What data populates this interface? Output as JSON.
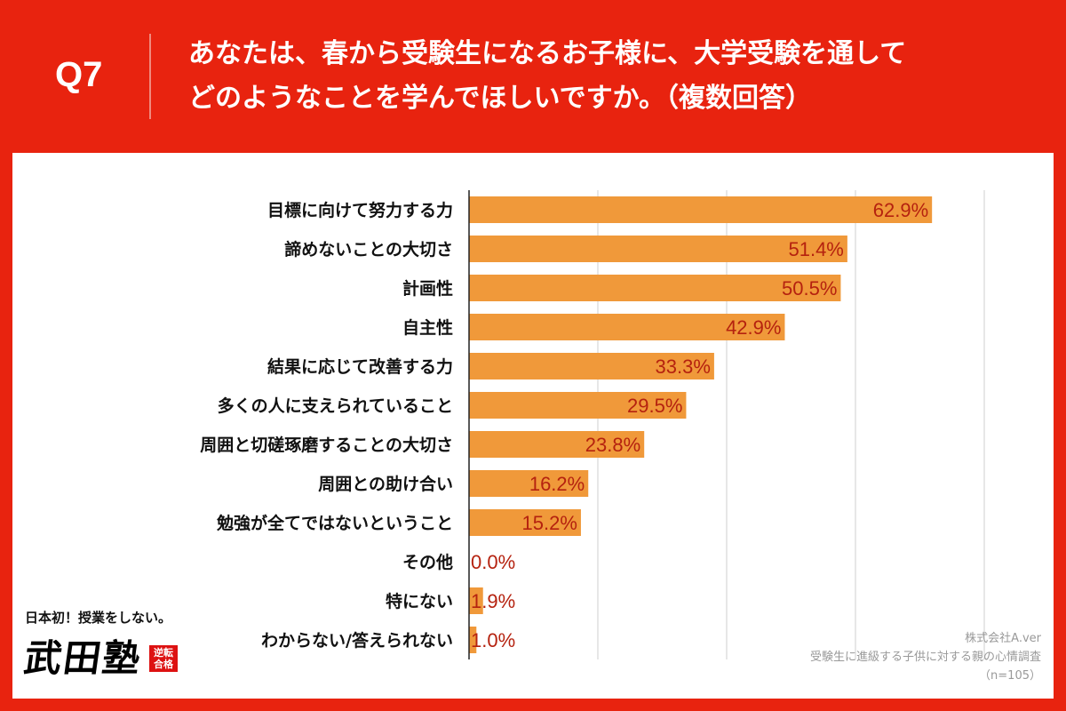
{
  "header": {
    "q_label": "Q7",
    "title_line1": "あなたは、春から受験生になるお子様に、大学受験を通して",
    "title_line2": "どのようなことを学んでほしいですか。（複数回答）"
  },
  "colors": {
    "background": "#e8230f",
    "bar": "#f0993a",
    "value_label": "#b5220f",
    "grid": "#cfcfcf"
  },
  "chart_data": {
    "type": "bar",
    "orientation": "horizontal",
    "categories": [
      "目標に向けて努力する力",
      "諦めないことの大切さ",
      "計画性",
      "自主性",
      "結果に応じて改善する力",
      "多くの人に支えられていること",
      "周囲と切磋琢磨することの大切さ",
      "周囲との助け合い",
      "勉強が全てではないということ",
      "その他",
      "特にない",
      "わからない/答えられない"
    ],
    "values": [
      62.9,
      51.4,
      50.5,
      42.9,
      33.3,
      29.5,
      23.8,
      16.2,
      15.2,
      0.0,
      1.9,
      1.0
    ],
    "value_labels": [
      "62.9%",
      "51.4%",
      "50.5%",
      "42.9%",
      "33.3%",
      "29.5%",
      "23.8%",
      "16.2%",
      "15.2%",
      "0.0%",
      "1.9%",
      "1.0%"
    ],
    "xlim": [
      0,
      70
    ],
    "grid": true,
    "title": "",
    "xlabel": "",
    "ylabel": ""
  },
  "source": {
    "company": "株式会社A.ver",
    "survey": "受験生に進級する子供に対する親の心情調査",
    "n": "（n=105）"
  },
  "logo": {
    "tagline": "日本初！授業をしない。",
    "name": "武田塾",
    "stamp": "逆転合格"
  }
}
